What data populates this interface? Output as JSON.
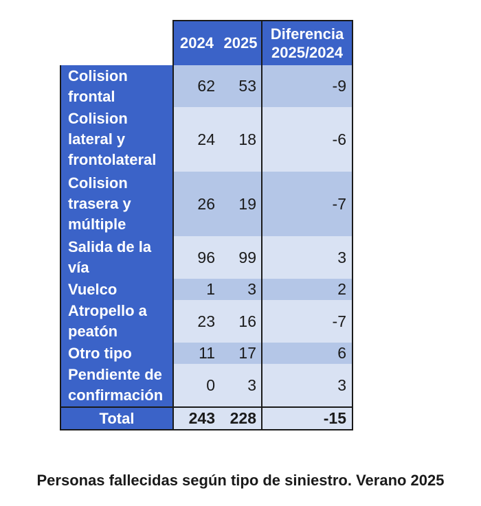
{
  "chart_data": {
    "type": "table",
    "columns": [
      "2024",
      "2025",
      "Diferencia 2025/2024"
    ],
    "rows": [
      {
        "label": "Colision frontal",
        "v2024": 62,
        "v2025": 53,
        "diff": "-9"
      },
      {
        "label": "Colision lateral y frontolateral",
        "v2024": 24,
        "v2025": 18,
        "diff": "-6"
      },
      {
        "label": "Colision trasera y múltiple",
        "v2024": 26,
        "v2025": 19,
        "diff": "-7"
      },
      {
        "label": "Salida de la vía",
        "v2024": 96,
        "v2025": 99,
        "diff": "3"
      },
      {
        "label": "Vuelco",
        "v2024": 1,
        "v2025": 3,
        "diff": "2"
      },
      {
        "label": "Atropello a peatón",
        "v2024": 23,
        "v2025": 16,
        "diff": "-7"
      },
      {
        "label": "Otro tipo",
        "v2024": 11,
        "v2025": 17,
        "diff": "6"
      },
      {
        "label": "Pendiente de confirmación",
        "v2024": 0,
        "v2025": 3,
        "diff": "3"
      }
    ],
    "total": {
      "label": "Total",
      "v2024": 243,
      "v2025": 228,
      "diff": "-15"
    },
    "caption": "Personas fallecidas según tipo de siniestro. Verano 2025"
  },
  "colors": {
    "header_blue": "#3b63c8",
    "row_dark": "#b4c6e7",
    "row_light": "#d9e2f3"
  }
}
